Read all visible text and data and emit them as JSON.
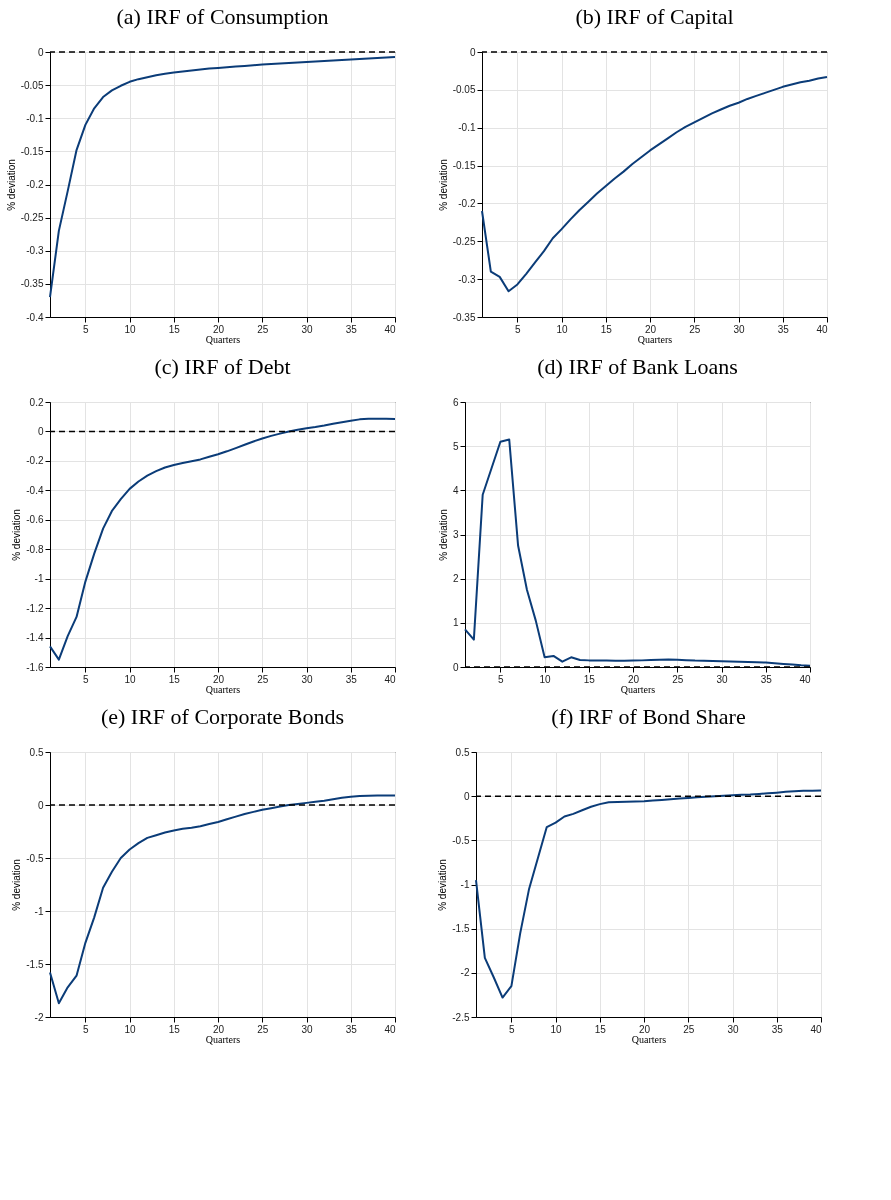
{
  "chart_data": [
    {
      "type": "line",
      "title": "(a) IRF of Consumption",
      "xlabel": "Quarters",
      "ylabel": "% deviation",
      "xlim": [
        1,
        40
      ],
      "xticks": [
        5,
        10,
        15,
        20,
        25,
        30,
        35,
        40
      ],
      "ylim": [
        -0.4,
        0
      ],
      "yticks": [
        -0.4,
        -0.35,
        -0.3,
        -0.25,
        -0.2,
        -0.15,
        -0.1,
        -0.05,
        0
      ],
      "grid": true,
      "line_style": "solid",
      "ref_lines": [
        {
          "axis": "y",
          "value": 0,
          "color": "#000000",
          "line_style": "dashed"
        }
      ],
      "x": [
        1,
        2,
        3,
        4,
        5,
        6,
        7,
        8,
        9,
        10,
        11,
        12,
        13,
        14,
        15,
        16,
        17,
        18,
        19,
        20,
        21,
        22,
        23,
        24,
        25,
        26,
        27,
        28,
        29,
        30,
        31,
        32,
        33,
        34,
        35,
        36,
        37,
        38,
        39,
        40
      ],
      "series": [
        {
          "color": "#0b3c78",
          "values": [
            -0.37,
            -0.27,
            -0.21,
            -0.148,
            -0.11,
            -0.085,
            -0.068,
            -0.058,
            -0.051,
            -0.045,
            -0.041,
            -0.038,
            -0.035,
            -0.033,
            -0.031,
            -0.0295,
            -0.028,
            -0.0265,
            -0.025,
            -0.024,
            -0.023,
            -0.022,
            -0.021,
            -0.02,
            -0.019,
            -0.018,
            -0.0172,
            -0.0165,
            -0.0158,
            -0.015,
            -0.0142,
            -0.0135,
            -0.0128,
            -0.012,
            -0.0113,
            -0.0105,
            -0.0098,
            -0.009,
            -0.0083,
            -0.0076
          ]
        }
      ]
    },
    {
      "type": "line",
      "title": "(b) IRF of Capital",
      "xlabel": "Quarters",
      "ylabel": "% deviation",
      "xlim": [
        1,
        40
      ],
      "xticks": [
        5,
        10,
        15,
        20,
        25,
        30,
        35,
        40
      ],
      "ylim": [
        -0.35,
        0
      ],
      "yticks": [
        -0.35,
        -0.3,
        -0.25,
        -0.2,
        -0.15,
        -0.1,
        -0.05,
        0
      ],
      "grid": true,
      "line_style": "solid",
      "ref_lines": [
        {
          "axis": "y",
          "value": 0,
          "color": "#000000",
          "line_style": "dashed"
        }
      ],
      "x": [
        1,
        2,
        3,
        4,
        5,
        6,
        7,
        8,
        9,
        10,
        11,
        12,
        13,
        14,
        15,
        16,
        17,
        18,
        19,
        20,
        21,
        22,
        23,
        24,
        25,
        26,
        27,
        28,
        29,
        30,
        31,
        32,
        33,
        34,
        35,
        36,
        37,
        38,
        39,
        40
      ],
      "series": [
        {
          "color": "#0b3c78",
          "values": [
            -0.21,
            -0.29,
            -0.297,
            -0.316,
            -0.307,
            -0.293,
            -0.278,
            -0.263,
            -0.246,
            -0.234,
            -0.221,
            -0.209,
            -0.198,
            -0.187,
            -0.177,
            -0.167,
            -0.158,
            -0.148,
            -0.139,
            -0.13,
            -0.122,
            -0.114,
            -0.106,
            -0.099,
            -0.093,
            -0.087,
            -0.081,
            -0.076,
            -0.071,
            -0.067,
            -0.062,
            -0.058,
            -0.054,
            -0.05,
            -0.046,
            -0.043,
            -0.04,
            -0.038,
            -0.035,
            -0.033
          ]
        }
      ]
    },
    {
      "type": "line",
      "title": "(c) IRF of Debt",
      "xlabel": "Quarters",
      "ylabel": "% deviation",
      "xlim": [
        1,
        40
      ],
      "xticks": [
        5,
        10,
        15,
        20,
        25,
        30,
        35,
        40
      ],
      "ylim": [
        -1.6,
        0.2
      ],
      "yticks": [
        -1.6,
        -1.4,
        -1.2,
        -1,
        -0.8,
        -0.6,
        -0.4,
        -0.2,
        0,
        0.2
      ],
      "grid": true,
      "line_style": "solid",
      "ref_lines": [
        {
          "axis": "y",
          "value": 0,
          "color": "#000000",
          "line_style": "dashed"
        }
      ],
      "x": [
        1,
        2,
        3,
        4,
        5,
        6,
        7,
        8,
        9,
        10,
        11,
        12,
        13,
        14,
        15,
        16,
        17,
        18,
        19,
        20,
        21,
        22,
        23,
        24,
        25,
        26,
        27,
        28,
        29,
        30,
        31,
        32,
        33,
        34,
        35,
        36,
        37,
        38,
        39,
        40
      ],
      "series": [
        {
          "color": "#0b3c78",
          "values": [
            -1.46,
            -1.55,
            -1.39,
            -1.26,
            -1.02,
            -0.83,
            -0.66,
            -0.54,
            -0.46,
            -0.39,
            -0.34,
            -0.3,
            -0.27,
            -0.245,
            -0.228,
            -0.215,
            -0.203,
            -0.19,
            -0.172,
            -0.155,
            -0.135,
            -0.113,
            -0.09,
            -0.068,
            -0.048,
            -0.03,
            -0.015,
            0,
            0.012,
            0.022,
            0.03,
            0.04,
            0.052,
            0.063,
            0.073,
            0.082,
            0.086,
            0.087,
            0.086,
            0.085
          ]
        }
      ]
    },
    {
      "type": "line",
      "title": "(d) IRF of Bank Loans",
      "xlabel": "Quarters",
      "ylabel": "% deviation",
      "xlim": [
        1,
        40
      ],
      "xticks": [
        5,
        10,
        15,
        20,
        25,
        30,
        35,
        40
      ],
      "ylim": [
        0,
        6
      ],
      "yticks": [
        0,
        1,
        2,
        3,
        4,
        5,
        6
      ],
      "grid": true,
      "line_style": "solid",
      "ref_lines": [
        {
          "axis": "y",
          "value": 0,
          "color": "#000000",
          "line_style": "dashed"
        }
      ],
      "x": [
        1,
        2,
        3,
        4,
        5,
        6,
        7,
        8,
        9,
        10,
        11,
        12,
        13,
        14,
        15,
        16,
        17,
        18,
        19,
        20,
        21,
        22,
        23,
        24,
        25,
        26,
        27,
        28,
        29,
        30,
        31,
        32,
        33,
        34,
        35,
        36,
        37,
        38,
        39,
        40
      ],
      "series": [
        {
          "color": "#0b3c78",
          "values": [
            0.85,
            0.62,
            3.9,
            4.5,
            5.1,
            5.15,
            2.75,
            1.75,
            1.05,
            0.22,
            0.25,
            0.12,
            0.22,
            0.16,
            0.15,
            0.15,
            0.145,
            0.14,
            0.14,
            0.145,
            0.15,
            0.16,
            0.165,
            0.17,
            0.165,
            0.155,
            0.145,
            0.14,
            0.135,
            0.13,
            0.125,
            0.12,
            0.115,
            0.11,
            0.1,
            0.085,
            0.07,
            0.055,
            0.04,
            0.03
          ]
        }
      ]
    },
    {
      "type": "line",
      "title": "(e) IRF of Corporate Bonds",
      "xlabel": "Quarters",
      "ylabel": "% deviation",
      "xlim": [
        1,
        40
      ],
      "xticks": [
        5,
        10,
        15,
        20,
        25,
        30,
        35,
        40
      ],
      "ylim": [
        -2,
        0.5
      ],
      "yticks": [
        -2,
        -1.5,
        -1,
        -0.5,
        0,
        0.5
      ],
      "grid": true,
      "line_style": "solid",
      "ref_lines": [
        {
          "axis": "y",
          "value": 0,
          "color": "#000000",
          "line_style": "dashed"
        }
      ],
      "x": [
        1,
        2,
        3,
        4,
        5,
        6,
        7,
        8,
        9,
        10,
        11,
        12,
        13,
        14,
        15,
        16,
        17,
        18,
        19,
        20,
        21,
        22,
        23,
        24,
        25,
        26,
        27,
        28,
        29,
        30,
        31,
        32,
        33,
        34,
        35,
        36,
        37,
        38,
        39,
        40
      ],
      "series": [
        {
          "color": "#0b3c78",
          "values": [
            -1.58,
            -1.87,
            -1.72,
            -1.61,
            -1.3,
            -1.06,
            -0.78,
            -0.63,
            -0.5,
            -0.42,
            -0.36,
            -0.31,
            -0.285,
            -0.26,
            -0.24,
            -0.225,
            -0.215,
            -0.2,
            -0.18,
            -0.16,
            -0.135,
            -0.11,
            -0.085,
            -0.065,
            -0.045,
            -0.03,
            -0.015,
            0,
            0.01,
            0.02,
            0.03,
            0.04,
            0.055,
            0.068,
            0.078,
            0.085,
            0.088,
            0.09,
            0.09,
            0.09
          ]
        }
      ]
    },
    {
      "type": "line",
      "title": "(f) IRF of Bond Share",
      "xlabel": "Quarters",
      "ylabel": "% deviation",
      "xlim": [
        1,
        40
      ],
      "xticks": [
        5,
        10,
        15,
        20,
        25,
        30,
        35,
        40
      ],
      "ylim": [
        -2.5,
        0.5
      ],
      "yticks": [
        -2.5,
        -2,
        -1.5,
        -1,
        -0.5,
        0,
        0.5
      ],
      "grid": true,
      "line_style": "solid",
      "ref_lines": [
        {
          "axis": "y",
          "value": 0,
          "color": "#000000",
          "line_style": "dashed"
        }
      ],
      "x": [
        1,
        2,
        3,
        4,
        5,
        6,
        7,
        8,
        9,
        10,
        11,
        12,
        13,
        14,
        15,
        16,
        17,
        18,
        19,
        20,
        21,
        22,
        23,
        24,
        25,
        26,
        27,
        28,
        29,
        30,
        31,
        32,
        33,
        34,
        35,
        36,
        37,
        38,
        39,
        40
      ],
      "series": [
        {
          "color": "#0b3c78",
          "values": [
            -0.95,
            -1.83,
            -2.05,
            -2.28,
            -2.15,
            -1.55,
            -1.05,
            -0.7,
            -0.35,
            -0.3,
            -0.23,
            -0.2,
            -0.16,
            -0.12,
            -0.09,
            -0.07,
            -0.065,
            -0.062,
            -0.06,
            -0.057,
            -0.05,
            -0.043,
            -0.035,
            -0.027,
            -0.02,
            -0.013,
            -0.007,
            0,
            0.005,
            0.01,
            0.015,
            0.018,
            0.025,
            0.032,
            0.04,
            0.05,
            0.056,
            0.06,
            0.062,
            0.063
          ]
        }
      ]
    }
  ]
}
